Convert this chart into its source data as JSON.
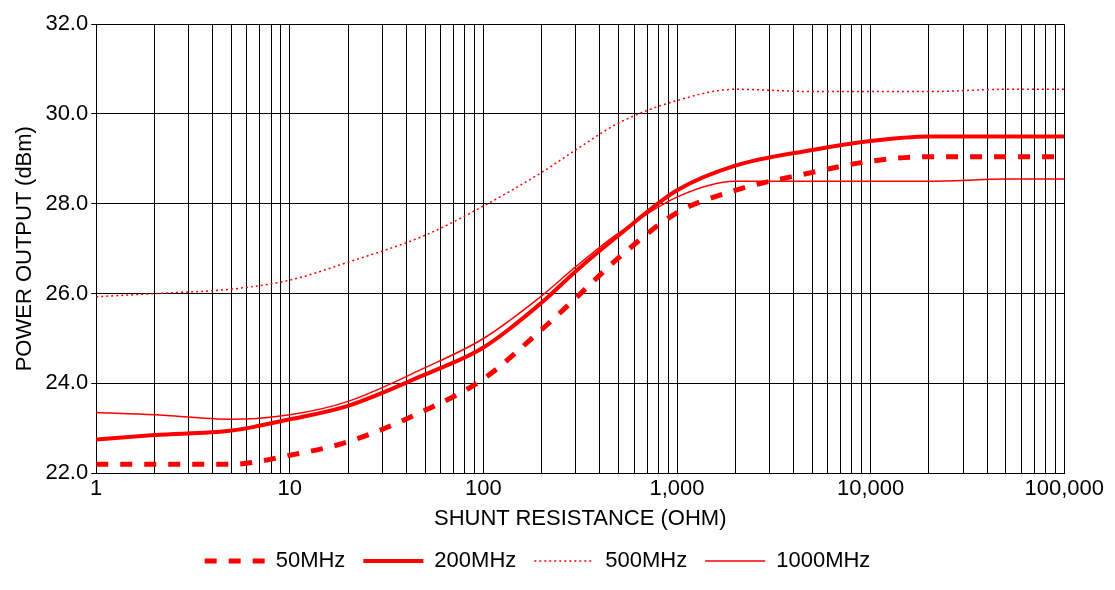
{
  "chart_data": {
    "type": "line",
    "xlabel": "SHUNT RESISTANCE (OHM)",
    "ylabel": "POWER OUTPUT (dBm)",
    "log": "x",
    "grid": true,
    "legend": "bottom",
    "marker": "none",
    "x": [
      1,
      2,
      5,
      10,
      20,
      50,
      100,
      200,
      300,
      500,
      1000,
      2000,
      5000,
      10000,
      20000,
      50000,
      100000
    ],
    "xlim": [
      1,
      100000
    ],
    "xticks": [
      1,
      {
        "value": 2,
        "label": null
      },
      {
        "value": 3,
        "label": null
      },
      {
        "value": 4,
        "label": null
      },
      {
        "value": 5,
        "label": null
      },
      {
        "value": 6,
        "label": null
      },
      {
        "value": 7,
        "label": null
      },
      {
        "value": 8,
        "label": null
      },
      {
        "value": 9,
        "label": null
      },
      10,
      {
        "value": 20,
        "label": null
      },
      {
        "value": 30,
        "label": null
      },
      {
        "value": 40,
        "label": null
      },
      {
        "value": 50,
        "label": null
      },
      {
        "value": 60,
        "label": null
      },
      {
        "value": 70,
        "label": null
      },
      {
        "value": 80,
        "label": null
      },
      {
        "value": 90,
        "label": null
      },
      100,
      {
        "value": 200,
        "label": null
      },
      {
        "value": 300,
        "label": null
      },
      {
        "value": 400,
        "label": null
      },
      {
        "value": 500,
        "label": null
      },
      {
        "value": 600,
        "label": null
      },
      {
        "value": 700,
        "label": null
      },
      {
        "value": 800,
        "label": null
      },
      {
        "value": 900,
        "label": null
      },
      {
        "value": 1000,
        "label": "1,000"
      },
      {
        "value": 2000,
        "label": null
      },
      {
        "value": 3000,
        "label": null
      },
      {
        "value": 4000,
        "label": null
      },
      {
        "value": 5000,
        "label": null
      },
      {
        "value": 6000,
        "label": null
      },
      {
        "value": 7000,
        "label": null
      },
      {
        "value": 8000,
        "label": null
      },
      {
        "value": 9000,
        "label": null
      },
      {
        "value": 10000,
        "label": "10,000"
      },
      {
        "value": 20000,
        "label": null
      },
      {
        "value": 30000,
        "label": null
      },
      {
        "value": 40000,
        "label": null
      },
      {
        "value": 50000,
        "label": null
      },
      {
        "value": 60000,
        "label": null
      },
      {
        "value": 70000,
        "label": null
      },
      {
        "value": 80000,
        "label": null
      },
      {
        "value": 90000,
        "label": null
      },
      {
        "value": 100000,
        "label": "100,000"
      }
    ],
    "ylim": [
      22,
      32
    ],
    "yticks": [
      {
        "value": 22,
        "label": "22.0"
      },
      {
        "value": 24,
        "label": "24.0"
      },
      {
        "value": 26,
        "label": "26.0"
      },
      {
        "value": 28,
        "label": "28.0"
      },
      {
        "value": 30,
        "label": "30.0"
      },
      {
        "value": 32,
        "label": "32.0"
      }
    ],
    "series": [
      {
        "name": "50MHz",
        "color": "#ff0000",
        "line_style": "dashed",
        "values": [
          22.2,
          22.2,
          22.2,
          22.4,
          22.7,
          23.4,
          24.1,
          25.2,
          25.9,
          26.8,
          27.8,
          28.3,
          28.7,
          28.95,
          29.05,
          29.05,
          29.05
        ]
      },
      {
        "name": "200MHz",
        "color": "#ff0000",
        "line_style": "solid",
        "values": [
          22.75,
          22.85,
          22.95,
          23.2,
          23.5,
          24.2,
          24.8,
          25.8,
          26.5,
          27.3,
          28.3,
          28.85,
          29.2,
          29.4,
          29.5,
          29.5,
          29.5
        ]
      },
      {
        "name": "500MHz",
        "color": "#ff0000",
        "line_style": "dotted",
        "values": [
          25.93,
          26.0,
          26.1,
          26.3,
          26.7,
          27.3,
          27.95,
          28.7,
          29.2,
          29.8,
          30.3,
          30.55,
          30.5,
          30.5,
          30.5,
          30.55,
          30.55
        ]
      },
      {
        "name": "1000MHz",
        "color": "#ff0000",
        "line_style": "solid",
        "values": [
          23.35,
          23.3,
          23.2,
          23.3,
          23.6,
          24.35,
          25.0,
          25.95,
          26.6,
          27.35,
          28.15,
          28.5,
          28.5,
          28.5,
          28.5,
          28.55,
          28.55
        ]
      }
    ]
  }
}
